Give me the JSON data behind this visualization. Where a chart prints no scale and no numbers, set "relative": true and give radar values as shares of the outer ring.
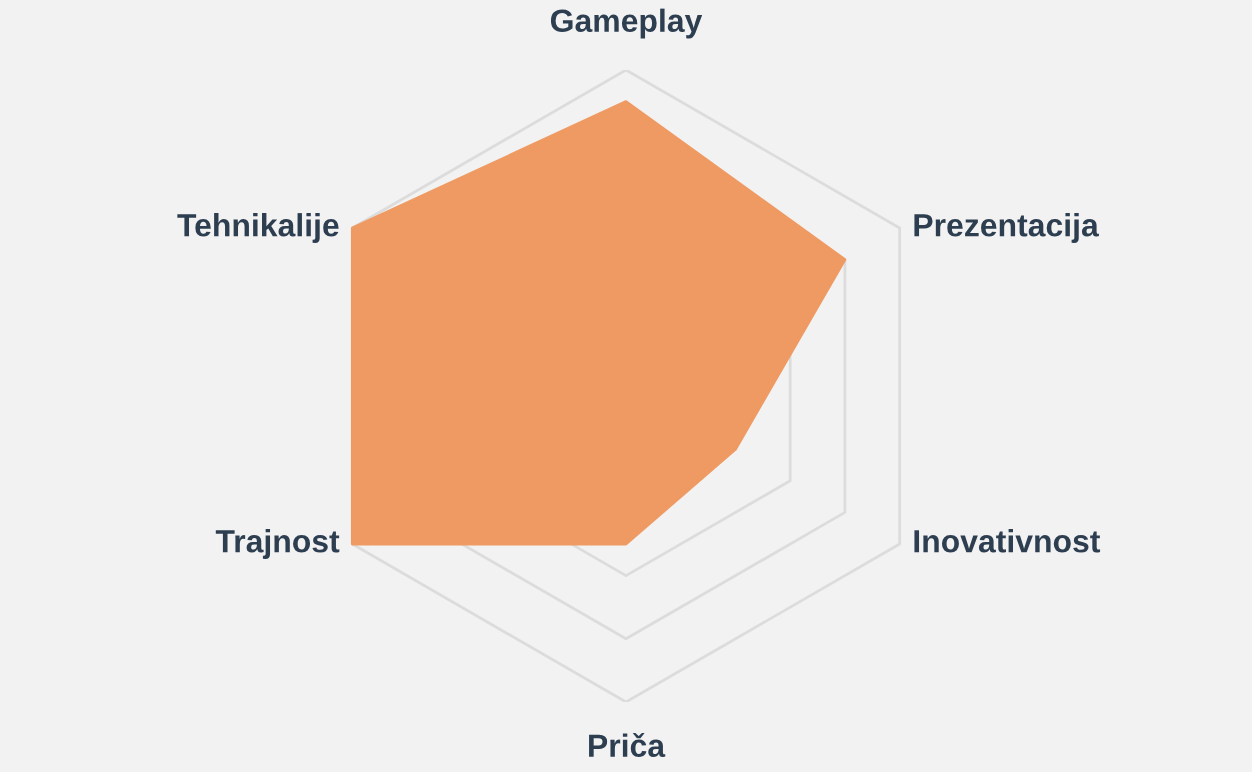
{
  "chart_data": {
    "type": "radar",
    "relative": true,
    "grid": true,
    "categories": [
      "Gameplay",
      "Prezentacija",
      "Inovativnost",
      "Priča",
      "Trajnost",
      "Tehnikalije"
    ],
    "series": [
      {
        "color": "#ee9a62",
        "values": [
          0.9,
          0.8,
          0.4,
          0.5,
          1.0,
          1.0
        ]
      }
    ]
  }
}
